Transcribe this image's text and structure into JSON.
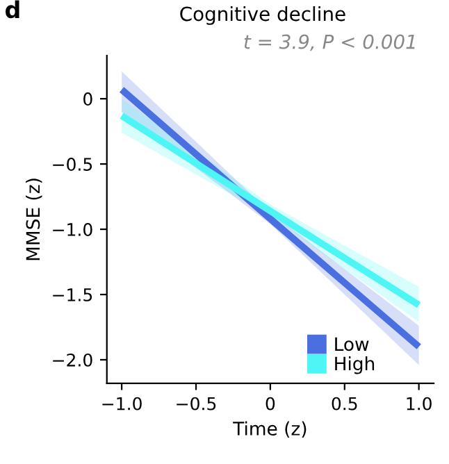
{
  "chart_data": {
    "type": "line",
    "title": "Cognitive decline",
    "subtitle": "t = 3.9, P < 0.001",
    "xlabel": "Time (z)",
    "ylabel": "MMSE (z)",
    "annotations": [
      "d"
    ],
    "x": [
      -1,
      0,
      1
    ],
    "series": [
      {
        "name": "Low",
        "color": "#4a6fe0",
        "values": [
          0.07,
          -0.92,
          -1.9
        ],
        "lower": [
          -0.1,
          -0.96,
          -2.04
        ],
        "upper": [
          0.21,
          -0.87,
          -1.74
        ]
      },
      {
        "name": "High",
        "color": "#4df5f5",
        "values": [
          -0.13,
          -0.86,
          -1.58
        ],
        "lower": [
          -0.26,
          -0.9,
          -1.71
        ],
        "upper": [
          0.0,
          -0.81,
          -1.44
        ]
      }
    ],
    "xlim": [
      -1.1,
      1.1
    ],
    "ylim": [
      -2.18,
      0.33
    ],
    "xticks": [
      {
        "value": -1.0,
        "label": "−1.0"
      },
      {
        "value": -0.5,
        "label": "−0.5"
      },
      0,
      0.5,
      {
        "value": 1.0,
        "label": "1.0"
      }
    ],
    "yticks": [
      0,
      {
        "value": -0.5,
        "label": "−0.5"
      },
      {
        "value": -1.0,
        "label": "−1.0"
      },
      {
        "value": -1.5,
        "label": "−1.5"
      },
      {
        "value": -2.0,
        "label": "−2.0"
      }
    ],
    "grid": false,
    "legend": "bottom right",
    "marker": "none",
    "line_style": "solid"
  }
}
